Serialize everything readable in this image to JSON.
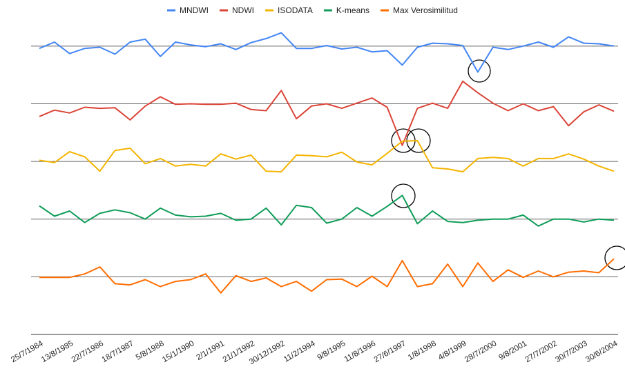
{
  "chart_data": {
    "type": "line",
    "categories": [
      "25/7/1984",
      null,
      "13/8/1985",
      null,
      "22/7/1986",
      null,
      "18/7/1987",
      null,
      "5/8/1988",
      null,
      "15/1/1990",
      null,
      "2/1/1991",
      null,
      "21/1/1992",
      null,
      "30/12/1992",
      null,
      "11/2/1994",
      null,
      "9/8/1995",
      null,
      "11/8/1996",
      null,
      "27/6/1997",
      null,
      "1/8/1998",
      null,
      "4/8/1999",
      null,
      "28/7/2000",
      null,
      "9/8/2001",
      null,
      "27/7/2002",
      null,
      "30/7/2003",
      null,
      "30/6/2004"
    ],
    "series": [
      {
        "name": "MNDWI",
        "color": "#4285f4",
        "values": [
          4.96,
          5.07,
          4.87,
          4.96,
          4.98,
          4.86,
          5.07,
          5.12,
          4.82,
          5.07,
          5.02,
          4.99,
          5.04,
          4.94,
          5.06,
          5.13,
          5.23,
          4.96,
          4.96,
          5.01,
          4.95,
          4.98,
          4.9,
          4.92,
          4.67,
          4.98,
          5.05,
          5.04,
          5.01,
          4.55,
          4.98,
          4.94,
          5.0,
          5.07,
          4.98,
          5.16,
          5.05,
          5.04,
          5.0
        ]
      },
      {
        "name": "NDWI",
        "color": "#db4437",
        "values": [
          3.78,
          3.89,
          3.84,
          3.94,
          3.92,
          3.93,
          3.72,
          3.96,
          4.12,
          3.99,
          4.0,
          3.99,
          3.99,
          4.01,
          3.9,
          3.88,
          4.23,
          3.74,
          3.96,
          4.0,
          3.92,
          4.01,
          4.1,
          3.94,
          3.28,
          3.92,
          4.01,
          3.92,
          4.39,
          4.19,
          4.01,
          3.88,
          4.0,
          3.88,
          3.95,
          3.62,
          3.86,
          3.98,
          3.87
        ]
      },
      {
        "name": "ISODATA",
        "color": "#f4b400",
        "values": [
          3.02,
          2.98,
          3.17,
          3.08,
          2.83,
          3.19,
          3.23,
          2.96,
          3.05,
          2.92,
          2.95,
          2.92,
          3.13,
          3.04,
          3.11,
          2.83,
          2.82,
          3.11,
          3.1,
          3.08,
          3.16,
          2.99,
          2.94,
          3.14,
          3.35,
          3.36,
          2.89,
          2.87,
          2.82,
          3.05,
          3.07,
          3.05,
          2.92,
          3.05,
          3.05,
          3.13,
          3.04,
          2.92,
          2.83
        ]
      },
      {
        "name": "K-means",
        "color": "#0f9d58",
        "values": [
          2.23,
          2.05,
          2.14,
          1.94,
          2.1,
          2.16,
          2.11,
          2.0,
          2.19,
          2.07,
          2.04,
          2.05,
          2.1,
          1.98,
          2.0,
          2.19,
          1.9,
          2.24,
          2.2,
          1.93,
          2.0,
          2.2,
          2.05,
          2.22,
          2.41,
          1.92,
          2.14,
          1.96,
          1.94,
          1.98,
          2.0,
          2.0,
          2.07,
          1.88,
          2.0,
          2.0,
          1.95,
          2.0,
          1.98
        ]
      },
      {
        "name": "Max Verosimilitud",
        "color": "#ff6d01",
        "values": [
          0.99,
          0.99,
          0.99,
          1.05,
          1.17,
          0.88,
          0.86,
          0.95,
          0.83,
          0.92,
          0.95,
          1.05,
          0.72,
          1.02,
          0.92,
          0.98,
          0.83,
          0.92,
          0.75,
          0.95,
          0.96,
          0.83,
          1.01,
          0.83,
          1.28,
          0.83,
          0.88,
          1.22,
          0.83,
          1.24,
          0.92,
          1.12,
          0.99,
          1.1,
          1.0,
          1.08,
          1.1,
          1.07,
          1.31
        ]
      }
    ],
    "ylim": [
      0,
      5.5
    ],
    "yticks": [
      0,
      1,
      2,
      3,
      4,
      5
    ],
    "grid": true,
    "legend": "top"
  }
}
